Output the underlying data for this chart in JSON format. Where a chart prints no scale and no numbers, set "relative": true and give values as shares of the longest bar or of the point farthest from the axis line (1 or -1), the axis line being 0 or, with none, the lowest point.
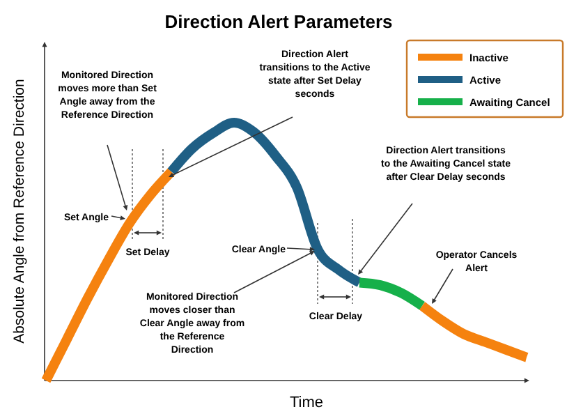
{
  "chart_data": {
    "type": "line",
    "title": "Direction Alert Parameters",
    "xlabel": "Time",
    "ylabel": "Absolute Angle from Reference Direction",
    "relative": true,
    "legend": "top right",
    "tick_labels": false,
    "categories": [
      null,
      null,
      null,
      null,
      null,
      null,
      null,
      null,
      null,
      null,
      null,
      null,
      null,
      null,
      null,
      null,
      null,
      null,
      null,
      null,
      null,
      null,
      null,
      null
    ],
    "series": [
      {
        "name": "Inactive",
        "color": "#f5820f",
        "values": [
          0,
          0.16,
          0.32,
          0.47,
          0.61,
          0.72,
          0.81,
          null,
          null,
          null,
          null,
          null,
          null,
          null,
          null,
          null,
          null,
          null,
          0.29,
          0.23,
          0.18,
          0.15,
          0.12,
          0.09
        ]
      },
      {
        "name": "Active",
        "color": "#1f5f85",
        "values": [
          null,
          null,
          null,
          null,
          null,
          null,
          0.81,
          0.9,
          0.96,
          1,
          0.96,
          0.87,
          0.75,
          0.51,
          0.43,
          0.38,
          null,
          null,
          null,
          null,
          null,
          null,
          null,
          null
        ]
      },
      {
        "name": "Awaiting Cancel",
        "color": "#16b04a",
        "values": [
          null,
          null,
          null,
          null,
          null,
          null,
          null,
          null,
          null,
          null,
          null,
          null,
          null,
          null,
          null,
          0.38,
          0.37,
          0.34,
          0.29,
          null,
          null,
          null,
          null,
          null
        ]
      }
    ],
    "annotations": [
      "Monitored Direction moves more than Set Angle away from the Reference Direction",
      "Direction Alert transitions to the Active state after Set Delay seconds",
      "Set Angle",
      "Set Delay",
      "Clear Angle",
      "Monitored Direction moves closer than Clear Angle away from the Reference Direction",
      "Clear Delay",
      "Direction Alert transitions to the Awaiting Cancel state after Clear Delay seconds",
      "Operator Cancels Alert"
    ]
  }
}
